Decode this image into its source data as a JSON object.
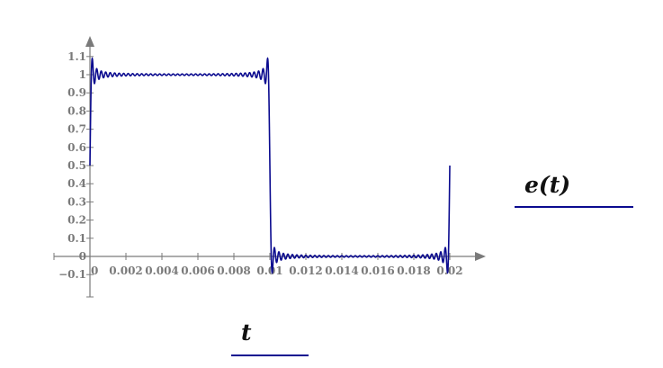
{
  "chart_data": {
    "type": "line",
    "title": "",
    "xlabel": "t",
    "ylabel": "e(t)",
    "xlim": [
      0,
      0.02
    ],
    "ylim": [
      -0.1,
      1.1
    ],
    "grid": false,
    "x_ticks": [
      "0",
      "0.002",
      "0.004",
      "0.006",
      "0.008",
      "0.01",
      "0.012",
      "0.014",
      "0.016",
      "0.018",
      "0.02"
    ],
    "y_ticks": [
      "1.1",
      "1",
      "0.9",
      "0.8",
      "0.7",
      "0.6",
      "0.5",
      "0.4",
      "0.3",
      "0.2",
      "0.1",
      "0",
      "−0.1"
    ],
    "series": [
      {
        "description": "Fourier series approximation of a square wave (Gibbs ripple)",
        "period": 0.02,
        "offset": 0.5,
        "high": 1,
        "low": 0,
        "odd_harmonics_up_to": 79,
        "color": "#0b0b8f",
        "key_points": [
          [
            0,
            0.5
          ],
          [
            0.005,
            1.0
          ],
          [
            0.01,
            0.5
          ],
          [
            0.015,
            0.0
          ],
          [
            0.02,
            0.5
          ]
        ]
      }
    ],
    "axis_color": "#7a7a7a"
  }
}
